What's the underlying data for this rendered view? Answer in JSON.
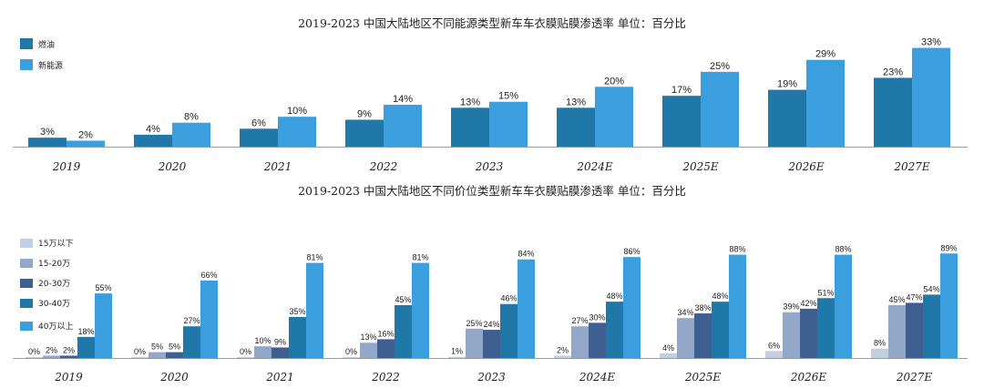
{
  "chart_data": [
    {
      "type": "bar",
      "title": "2019-2023  中国大陆地区不同能源类型新车车衣膜贴膜渗透率  单位：百分比",
      "categories": [
        "2019",
        "2020",
        "2021",
        "2022",
        "2023",
        "2024E",
        "2025E",
        "2026E",
        "2027E"
      ],
      "series": [
        {
          "name": "燃油",
          "color": "#1f78a8",
          "values": [
            3,
            4,
            6,
            9,
            13,
            13,
            17,
            19,
            23
          ],
          "labels": [
            "3%",
            "4%",
            "6%",
            "9%",
            "13%",
            "13%",
            "17%",
            "19%",
            "23%"
          ]
        },
        {
          "name": "新能源",
          "color": "#3a9fdc",
          "values": [
            2,
            8,
            10,
            14,
            15,
            20,
            25,
            29,
            33
          ],
          "labels": [
            "2%",
            "8%",
            "10%",
            "14%",
            "15%",
            "20%",
            "25%",
            "29%",
            "33%"
          ]
        }
      ],
      "ylim": [
        0,
        35
      ],
      "legend": "top-left",
      "xlabel": "",
      "ylabel": ""
    },
    {
      "type": "bar",
      "title": "2019-2023  中国大陆地区不同价位类型新车车衣膜贴膜渗透率  单位：百分比",
      "categories": [
        "2019",
        "2020",
        "2021",
        "2022",
        "2023",
        "2024E",
        "2025E",
        "2026E",
        "2027E"
      ],
      "series": [
        {
          "name": "15万以下",
          "color": "#c3cfe0",
          "values": [
            0,
            0,
            0,
            0,
            1,
            2,
            4,
            6,
            8
          ],
          "labels": [
            "0%",
            "0%",
            "0%",
            "0%",
            "1%",
            "2%",
            "4%",
            "6%",
            "8%"
          ]
        },
        {
          "name": "15-20万",
          "color": "#93a8c8",
          "values": [
            2,
            5,
            10,
            13,
            25,
            27,
            34,
            39,
            45
          ],
          "labels": [
            "2%",
            "5%",
            "10%",
            "13%",
            "25%",
            "27%",
            "34%",
            "39%",
            "45%"
          ]
        },
        {
          "name": "20-30万",
          "color": "#3f5f90",
          "values": [
            2,
            5,
            9,
            16,
            24,
            30,
            38,
            42,
            47
          ],
          "labels": [
            "2%",
            "5%",
            "9%",
            "16%",
            "24%",
            "30%",
            "38%",
            "42%",
            "47%"
          ]
        },
        {
          "name": "30-40万",
          "color": "#1f78a8",
          "values": [
            18,
            27,
            35,
            45,
            46,
            48,
            48,
            51,
            54
          ],
          "labels": [
            "18%",
            "27%",
            "35%",
            "45%",
            "46%",
            "48%",
            "48%",
            "51%",
            "54%"
          ]
        },
        {
          "name": "40万以上",
          "color": "#3a9fdc",
          "values": [
            55,
            66,
            81,
            81,
            84,
            86,
            88,
            88,
            89
          ],
          "labels": [
            "55%",
            "66%",
            "81%",
            "81%",
            "84%",
            "86%",
            "88%",
            "88%",
            "89%"
          ]
        }
      ],
      "ylim": [
        0,
        90
      ],
      "legend": "left",
      "xlabel": "",
      "ylabel": ""
    }
  ]
}
